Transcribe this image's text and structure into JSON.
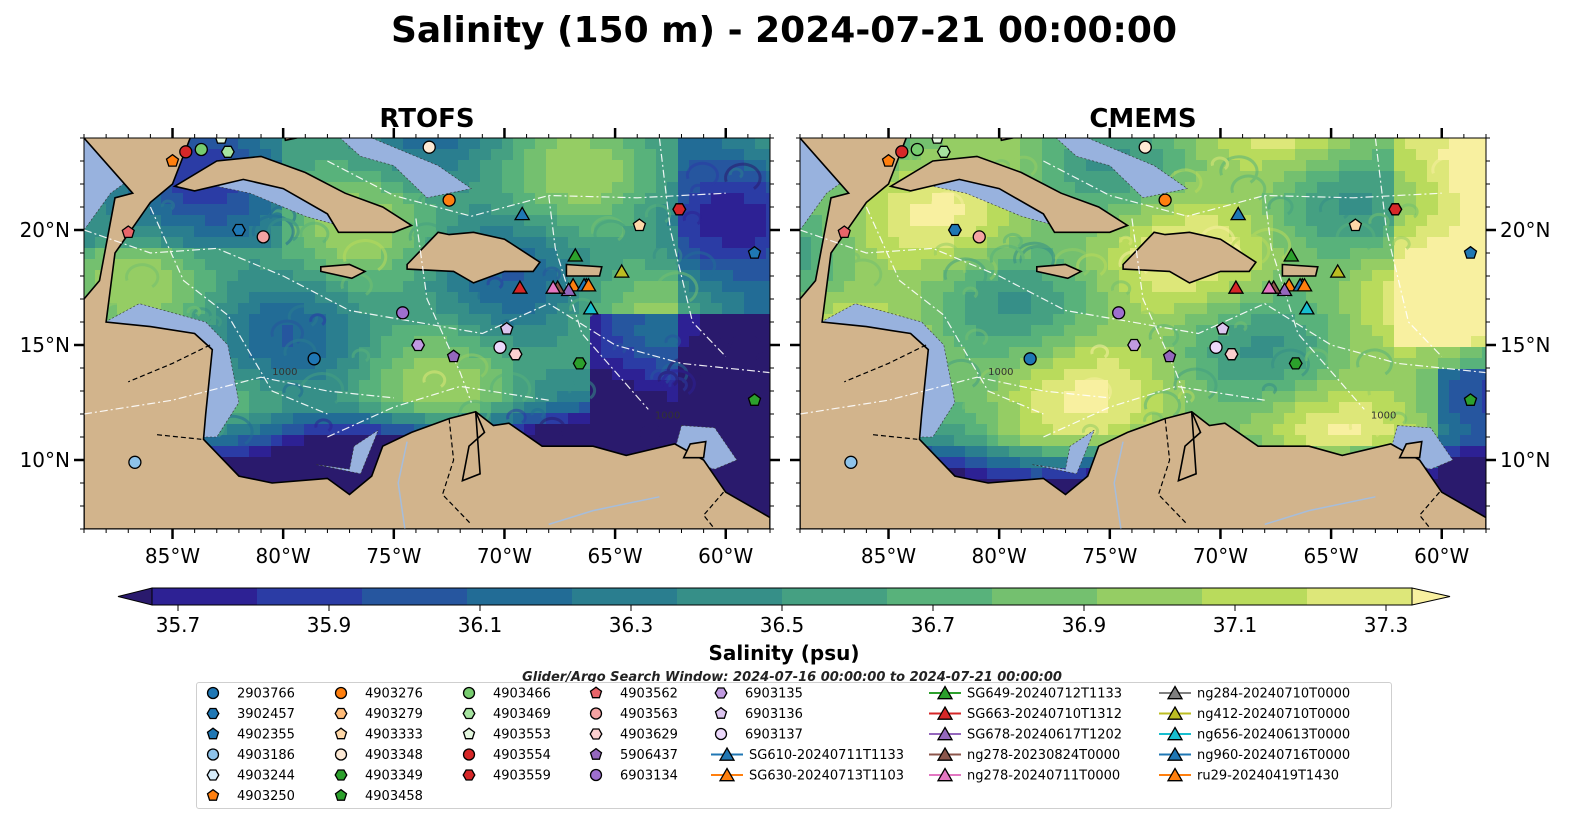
{
  "chart_data": {
    "type": "heatmap",
    "title": "Salinity (150 m) - 2024-07-21 00:00:00",
    "panels": [
      {
        "title": "RTOFS"
      },
      {
        "title": "CMEMS"
      }
    ],
    "lon_range": [
      -89,
      -58
    ],
    "lat_range": [
      7,
      24
    ],
    "x_ticks": [
      "85°W",
      "80°W",
      "75°W",
      "70°W",
      "65°W",
      "60°W"
    ],
    "x_tick_values": [
      -85,
      -80,
      -75,
      -70,
      -65,
      -60
    ],
    "y_ticks": [
      "10°N",
      "15°N",
      "20°N"
    ],
    "y_tick_values": [
      10,
      15,
      20
    ],
    "colorbar": {
      "label": "Salinity (psu)",
      "ticks": [
        "35.7",
        "35.9",
        "36.1",
        "36.3",
        "36.5",
        "36.7",
        "36.9",
        "37.1",
        "37.3"
      ],
      "range": [
        35.7,
        37.3
      ],
      "extend": "both"
    },
    "contour_labels": [
      "1000",
      "1000"
    ],
    "search_window": "Glider/Argo Search Window: 2024-07-16 00:00:00 to 2024-07-21 00:00:00",
    "legend": [
      {
        "name": "2903766",
        "marker": "circle",
        "color": "#1f77b4"
      },
      {
        "name": "3902457",
        "marker": "hexagon",
        "color": "#1f77b4"
      },
      {
        "name": "4902355",
        "marker": "pentagon",
        "color": "#1f77b4"
      },
      {
        "name": "4903186",
        "marker": "circle",
        "color": "#8ec3ea"
      },
      {
        "name": "4903244",
        "marker": "hexagon",
        "color": "#d6ecfa"
      },
      {
        "name": "4903250",
        "marker": "pentagon",
        "color": "#ff7f0e"
      },
      {
        "name": "4903276",
        "marker": "circle",
        "color": "#ff7f0e"
      },
      {
        "name": "4903279",
        "marker": "hexagon",
        "color": "#ffbb78"
      },
      {
        "name": "4903333",
        "marker": "pentagon",
        "color": "#ffd8a8"
      },
      {
        "name": "4903348",
        "marker": "circle",
        "color": "#fde9d5"
      },
      {
        "name": "4903349",
        "marker": "hexagon",
        "color": "#2ca02c"
      },
      {
        "name": "4903458",
        "marker": "pentagon",
        "color": "#2ca02c"
      },
      {
        "name": "4903466",
        "marker": "circle",
        "color": "#77cc6f"
      },
      {
        "name": "4903469",
        "marker": "hexagon",
        "color": "#a6e3a0"
      },
      {
        "name": "4903553",
        "marker": "pentagon",
        "color": "#e4f7df"
      },
      {
        "name": "4903554",
        "marker": "circle",
        "color": "#d62728"
      },
      {
        "name": "4903559",
        "marker": "hexagon",
        "color": "#d62728"
      },
      {
        "name": "4903562",
        "marker": "pentagon",
        "color": "#e8656a"
      },
      {
        "name": "4903563",
        "marker": "circle",
        "color": "#f4a3a3"
      },
      {
        "name": "4903629",
        "marker": "hexagon",
        "color": "#fbd0cf"
      },
      {
        "name": "5906437",
        "marker": "pentagon",
        "color": "#9467bd"
      },
      {
        "name": "6903134",
        "marker": "circle",
        "color": "#9e6fcf"
      },
      {
        "name": "6903135",
        "marker": "hexagon",
        "color": "#c09ae0"
      },
      {
        "name": "6903136",
        "marker": "pentagon",
        "color": "#dcc5ef"
      },
      {
        "name": "6903137",
        "marker": "circle",
        "color": "#ecd8fb"
      },
      {
        "name": "SG610-20240711T1133",
        "marker": "triangle",
        "color": "#1f77b4"
      },
      {
        "name": "SG630-20240713T1103",
        "marker": "triangle",
        "color": "#ff7f0e"
      },
      {
        "name": "SG649-20240712T1133",
        "marker": "triangle",
        "color": "#2ca02c"
      },
      {
        "name": "SG663-20240710T1312",
        "marker": "triangle",
        "color": "#d62728"
      },
      {
        "name": "SG678-20240617T1202",
        "marker": "triangle",
        "color": "#9467bd"
      },
      {
        "name": "ng278-20230824T0000",
        "marker": "triangle",
        "color": "#8c564b"
      },
      {
        "name": "ng278-20240711T0000",
        "marker": "triangle",
        "color": "#e377c2"
      },
      {
        "name": "ng284-20240710T0000",
        "marker": "triangle",
        "color": "#7f7f7f"
      },
      {
        "name": "ng412-20240710T0000",
        "marker": "triangle",
        "color": "#bcbd22"
      },
      {
        "name": "ng656-20240613T0000",
        "marker": "triangle",
        "color": "#17becf"
      },
      {
        "name": "ng960-20240716T0000",
        "marker": "triangle",
        "color": "#1f77b4"
      },
      {
        "name": "ru29-20240419T1430",
        "marker": "triangle",
        "color": "#ff7f0e"
      }
    ],
    "points": [
      {
        "name": "2903766",
        "lon": -78.6,
        "lat": 14.4
      },
      {
        "name": "3902457",
        "lon": -82.0,
        "lat": 20.0
      },
      {
        "name": "4902355",
        "lon": -58.7,
        "lat": 19.0
      },
      {
        "name": "4903186",
        "lon": -86.7,
        "lat": 9.9
      },
      {
        "name": "4903244",
        "lon": -62.1,
        "lat": 20.9
      },
      {
        "name": "4903250",
        "lon": -85.0,
        "lat": 23.0
      },
      {
        "name": "4903276",
        "lon": -72.5,
        "lat": 21.3
      },
      {
        "name": "4903279",
        "lon": -69.5,
        "lat": 14.6
      },
      {
        "name": "4903333",
        "lon": -63.9,
        "lat": 20.2
      },
      {
        "name": "4903348",
        "lon": -73.4,
        "lat": 23.6
      },
      {
        "name": "4903349",
        "lon": -66.6,
        "lat": 14.2
      },
      {
        "name": "4903458",
        "lon": -58.7,
        "lat": 12.6
      },
      {
        "name": "4903466",
        "lon": -83.7,
        "lat": 23.5
      },
      {
        "name": "4903469",
        "lon": -82.5,
        "lat": 23.4
      },
      {
        "name": "4903553",
        "lon": -82.8,
        "lat": 24.0
      },
      {
        "name": "4903554",
        "lon": -84.4,
        "lat": 23.4
      },
      {
        "name": "4903559",
        "lon": -62.1,
        "lat": 20.9
      },
      {
        "name": "4903562",
        "lon": -87.0,
        "lat": 19.9
      },
      {
        "name": "4903563",
        "lon": -80.9,
        "lat": 19.7
      },
      {
        "name": "4903629",
        "lon": -69.5,
        "lat": 14.6
      },
      {
        "name": "5906437",
        "lon": -72.3,
        "lat": 14.5
      },
      {
        "name": "6903134",
        "lon": -74.6,
        "lat": 16.4
      },
      {
        "name": "6903135",
        "lon": -73.9,
        "lat": 15.0
      },
      {
        "name": "6903136",
        "lon": -69.9,
        "lat": 15.7
      },
      {
        "name": "6903137",
        "lon": -70.2,
        "lat": 14.9
      },
      {
        "name": "SG610-20240711T1133",
        "lon": -69.2,
        "lat": 20.7
      },
      {
        "name": "SG630-20240713T1103",
        "lon": -66.9,
        "lat": 17.6
      },
      {
        "name": "SG649-20240712T1133",
        "lon": -66.8,
        "lat": 18.9
      },
      {
        "name": "SG663-20240710T1312",
        "lon": -69.3,
        "lat": 17.5
      },
      {
        "name": "SG678-20240617T1202",
        "lon": -67.1,
        "lat": 17.4
      },
      {
        "name": "ng278-20230824T0000",
        "lon": -67.6,
        "lat": 17.5
      },
      {
        "name": "ng278-20240711T0000",
        "lon": -67.8,
        "lat": 17.5
      },
      {
        "name": "ng284-20240710T0000",
        "lon": -66.3,
        "lat": 17.6
      },
      {
        "name": "ng412-20240710T0000",
        "lon": -64.7,
        "lat": 18.2
      },
      {
        "name": "ng656-20240613T0000",
        "lon": -66.1,
        "lat": 16.6
      },
      {
        "name": "ng960-20240716T0000",
        "lon": -66.4,
        "lat": 17.6
      },
      {
        "name": "ru29-20240419T1430",
        "lon": -66.2,
        "lat": 17.6
      }
    ]
  },
  "colors": {
    "land": "#d2b48c",
    "shelf": "#98b2de",
    "deep": "#2a1a6d",
    "palette": [
      "#2a1a6d",
      "#2d2194",
      "#2b3ca5",
      "#26569f",
      "#226c96",
      "#2a7e8f",
      "#368f88",
      "#45a082",
      "#58b27b",
      "#74c06f",
      "#95cd64",
      "#b9db5c",
      "#dde779",
      "#f8f0a0"
    ]
  }
}
